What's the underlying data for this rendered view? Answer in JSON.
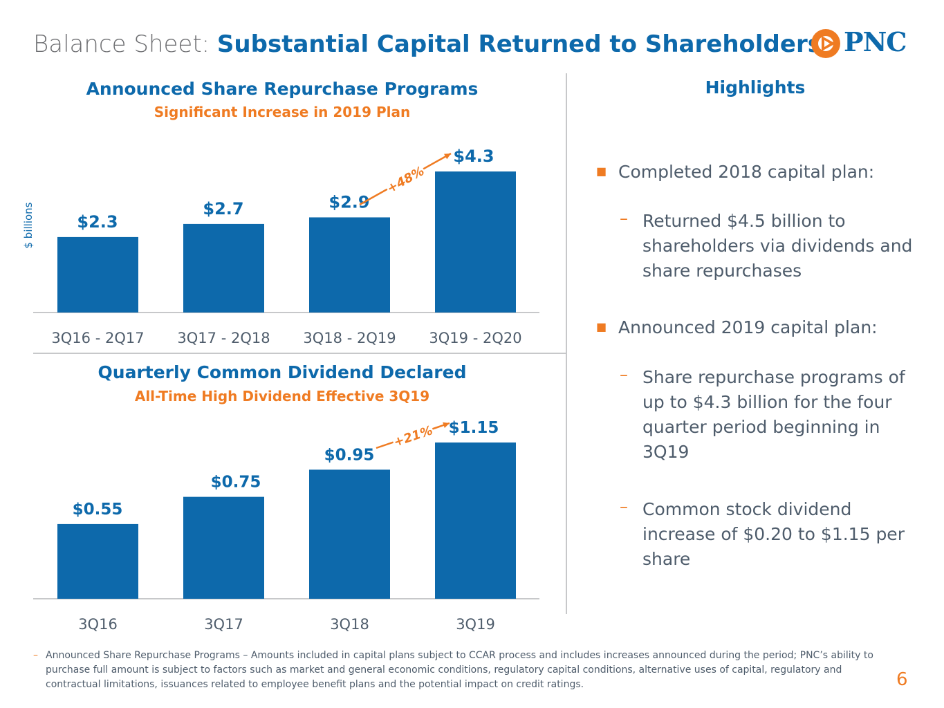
{
  "header": {
    "title_prefix": "Balance Sheet:",
    "title_main": "Substantial Capital Returned to Shareholders",
    "logo_text": "PNC"
  },
  "colors": {
    "primary_blue": "#0d69ab",
    "accent_orange": "#ef7b22",
    "text_gray": "#4e5c6b",
    "divider_gray": "#c7c8ca"
  },
  "chart_data": [
    {
      "type": "bar",
      "title": "Announced Share Repurchase Programs",
      "subtitle": "Significant Increase in 2019 Plan",
      "ylabel": "$ billions",
      "categories": [
        "3Q16 - 2Q17",
        "3Q17 - 2Q18",
        "3Q18 - 2Q19",
        "3Q19 - 2Q20"
      ],
      "values": [
        2.3,
        2.7,
        2.9,
        4.3
      ],
      "data_labels": [
        "$2.3",
        "$2.7",
        "$2.9",
        "$4.3"
      ],
      "annotation": "+48%",
      "ylim": [
        0,
        4.3
      ],
      "grid": false,
      "color": "#0d69ab"
    },
    {
      "type": "bar",
      "title": "Quarterly Common Dividend Declared",
      "subtitle": "All-Time High Dividend Effective 3Q19",
      "ylabel": "",
      "categories": [
        "3Q16",
        "3Q17",
        "3Q18",
        "3Q19"
      ],
      "values": [
        0.55,
        0.75,
        0.95,
        1.15
      ],
      "data_labels": [
        "$0.55",
        "$0.75",
        "$0.95",
        "$1.15"
      ],
      "annotation": "+21%",
      "ylim": [
        0,
        1.15
      ],
      "grid": false,
      "color": "#0d69ab"
    }
  ],
  "highlights": {
    "title": "Highlights",
    "bullet1": "Completed 2018 capital plan:",
    "bullet1_sub1": "Returned $4.5 billion to shareholders via dividends and share repurchases",
    "bullet2": "Announced 2019 capital plan:",
    "bullet2_sub1": "Share repurchase programs of up to $4.3 billion for the four quarter period beginning in 3Q19",
    "bullet2_sub2": "Common stock dividend increase of $0.20 to $1.15 per share"
  },
  "footnote": "Announced Share Repurchase Programs – Amounts included in capital plans subject to CCAR process and includes increases announced during the period; PNC’s ability to purchase full amount is subject to factors such as market and general economic conditions, regulatory capital conditions, alternative uses of capital, regulatory and contractual limitations, issuances related to employee benefit plans and the potential impact on credit ratings.",
  "page_number": "6"
}
